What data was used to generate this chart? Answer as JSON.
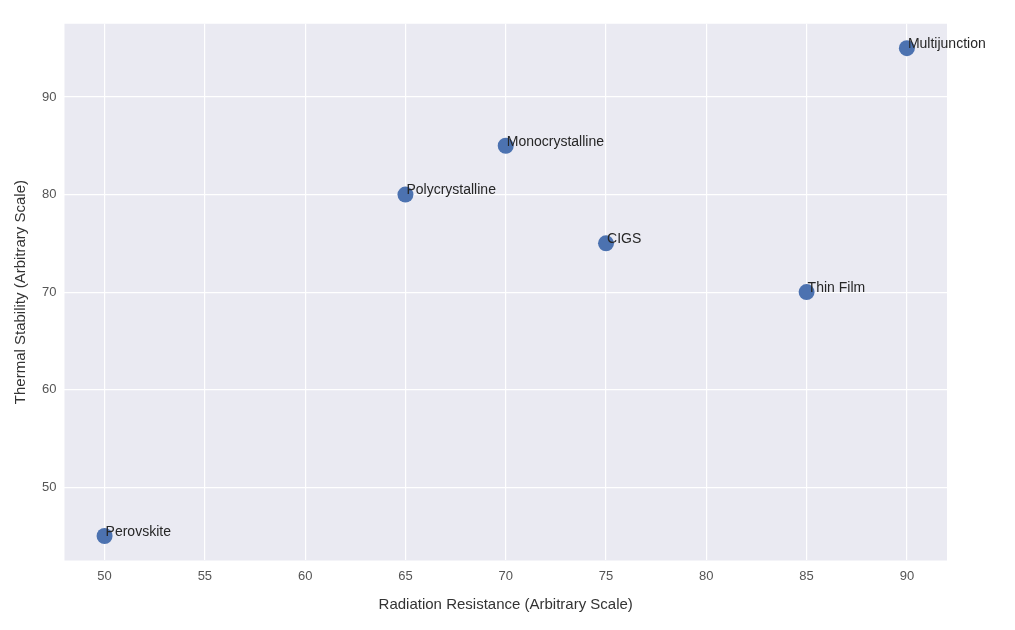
{
  "chart_data": {
    "type": "scatter",
    "xlabel": "Radiation Resistance (Arbitrary Scale)",
    "ylabel": "Thermal Stability (Arbitrary Scale)",
    "x": [
      50,
      65,
      70,
      75,
      85,
      90
    ],
    "series": [
      {
        "color": "#4c72b0",
        "values": [
          45,
          80,
          85,
          75,
          70,
          95
        ]
      }
    ],
    "xlim": [
      48,
      92
    ],
    "ylim": [
      42.5,
      97.5
    ],
    "xticks": [
      50,
      55,
      60,
      65,
      70,
      75,
      80,
      85,
      90
    ],
    "yticks": [
      50,
      60,
      70,
      80,
      90
    ],
    "grid": true,
    "legend": false,
    "marker": "circle",
    "annotations": [
      {
        "text": "Perovskite",
        "x": 50,
        "y": 45
      },
      {
        "text": "Polycrystalline",
        "x": 65,
        "y": 80
      },
      {
        "text": "Monocrystalline",
        "x": 70,
        "y": 85
      },
      {
        "text": "CIGS",
        "x": 75,
        "y": 75
      },
      {
        "text": "Thin Film",
        "x": 85,
        "y": 70
      },
      {
        "text": "Multijunction",
        "x": 90,
        "y": 95
      }
    ]
  }
}
